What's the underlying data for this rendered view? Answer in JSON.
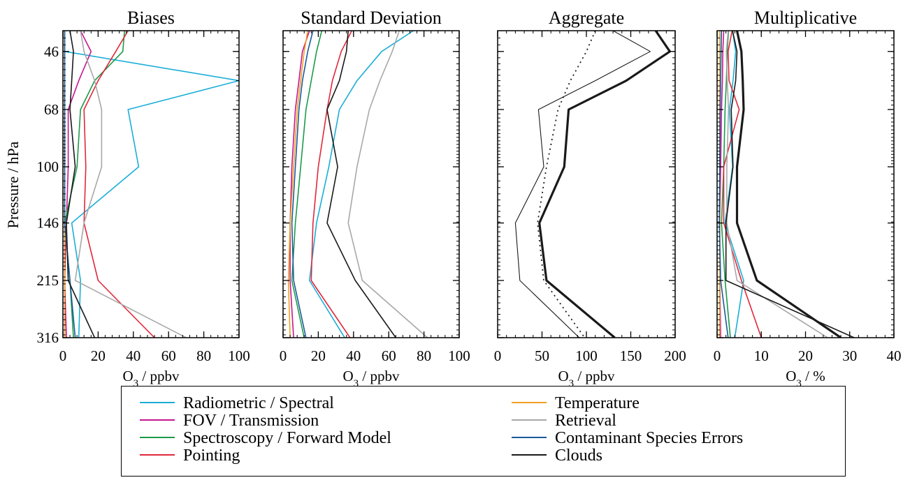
{
  "figure": {
    "ylabel": "Pressure / hPa",
    "series_names": {
      "radiometric": "Radiometric / Spectral",
      "fov": "FOV / Transmission",
      "spectroscopy": "Spectroscopy / Forward Model",
      "pointing": "Pointing",
      "temperature": "Temperature",
      "retrieval": "Retrieval",
      "contaminant": "Contaminant Species Errors",
      "clouds": "Clouds"
    },
    "series_colors": {
      "radiometric": "#1aaed6",
      "fov": "#c4168f",
      "spectroscopy": "#1c9a4a",
      "pointing": "#e0283a",
      "temperature": "#f0a020",
      "retrieval": "#a8a8a8",
      "contaminant": "#1a5a9a",
      "clouds": "#1a1a1a"
    }
  },
  "legend": {
    "columns": [
      [
        "radiometric",
        "fov",
        "spectroscopy",
        "pointing"
      ],
      [
        "temperature",
        "retrieval",
        "contaminant",
        "clouds"
      ]
    ]
  },
  "chart_data": [
    {
      "type": "line",
      "title": "Biases",
      "xlabel_main": "O",
      "xlabel_sub": "3",
      "xlabel_rest": " / ppbv",
      "xlim": [
        0,
        100
      ],
      "xticks": [
        0,
        20,
        40,
        60,
        80,
        100
      ],
      "ylim": [
        316,
        40
      ],
      "ylog": true,
      "yticks": [
        46,
        68,
        100,
        146,
        215,
        316
      ],
      "grid": false,
      "y": [
        40,
        46,
        56,
        68,
        100,
        146,
        215,
        316
      ],
      "series": [
        {
          "key": "radiometric",
          "x": [
            1,
            1,
            100,
            37,
            43,
            5,
            10,
            9
          ]
        },
        {
          "key": "fov",
          "x": [
            10,
            16,
            9,
            3,
            3,
            2,
            1,
            2
          ]
        },
        {
          "key": "spectroscopy",
          "x": [
            35,
            34,
            18,
            10,
            8,
            1,
            4,
            6
          ]
        },
        {
          "key": "pointing",
          "x": [
            37,
            30,
            20,
            12,
            13,
            12,
            20,
            52
          ]
        },
        {
          "key": "temperature",
          "x": [
            1,
            1,
            1,
            1,
            1,
            1,
            1,
            1
          ]
        },
        {
          "key": "retrieval",
          "x": [
            10,
            12,
            18,
            22,
            22,
            12,
            7,
            70
          ]
        },
        {
          "key": "contaminant",
          "x": [
            1,
            1,
            1,
            1,
            1,
            1,
            4,
            7
          ]
        },
        {
          "key": "clouds",
          "x": [
            4,
            6,
            5,
            4,
            7,
            2,
            3,
            18
          ]
        }
      ]
    },
    {
      "type": "line",
      "title": "Standard Deviation",
      "xlabel_main": "O",
      "xlabel_sub": "3",
      "xlabel_rest": " / ppbv",
      "xlim": [
        0,
        100
      ],
      "xticks": [
        0,
        20,
        40,
        60,
        80,
        100
      ],
      "ylim": [
        316,
        40
      ],
      "ylog": true,
      "yticks": [
        46,
        68,
        100,
        146,
        215,
        316
      ],
      "grid": false,
      "y": [
        40,
        46,
        56,
        68,
        100,
        146,
        215,
        316
      ],
      "series": [
        {
          "key": "radiometric",
          "x": [
            74,
            56,
            42,
            32,
            26,
            19,
            15,
            35
          ]
        },
        {
          "key": "fov",
          "x": [
            15,
            11,
            9,
            7,
            5,
            4,
            4,
            6
          ]
        },
        {
          "key": "spectroscopy",
          "x": [
            22,
            19,
            16,
            13,
            10,
            7,
            5,
            12
          ]
        },
        {
          "key": "pointing",
          "x": [
            39,
            33,
            28,
            25,
            20,
            17,
            16,
            38
          ]
        },
        {
          "key": "temperature",
          "x": [
            14,
            12,
            10,
            8,
            6,
            4,
            3,
            4
          ]
        },
        {
          "key": "retrieval",
          "x": [
            66,
            62,
            55,
            49,
            42,
            37,
            45,
            82
          ]
        },
        {
          "key": "contaminant",
          "x": [
            17,
            14,
            11,
            9,
            7,
            5,
            6,
            13
          ]
        },
        {
          "key": "clouds",
          "x": [
            37,
            36,
            32,
            25,
            31,
            25,
            41,
            64
          ]
        }
      ]
    },
    {
      "type": "line",
      "title": "Aggregate",
      "xlabel_main": "O",
      "xlabel_sub": "3",
      "xlabel_rest": " / ppbv",
      "xlim": [
        0,
        200
      ],
      "xticks": [
        0,
        50,
        100,
        150,
        200
      ],
      "ylim": [
        316,
        40
      ],
      "ylog": true,
      "yticks": [
        46,
        68,
        100,
        146,
        215,
        316
      ],
      "grid": false,
      "y": [
        40,
        46,
        56,
        68,
        100,
        146,
        215,
        316
      ],
      "series": [
        {
          "key": "clouds",
          "style": "thick",
          "x": [
            178,
            194,
            145,
            80,
            75,
            47,
            55,
            132
          ]
        },
        {
          "key": "clouds",
          "style": "thin",
          "x": [
            130,
            172,
            110,
            46,
            52,
            20,
            25,
            92
          ]
        },
        {
          "key": "clouds",
          "style": "dotted",
          "x": [
            110,
            100,
            82,
            68,
            55,
            45,
            52,
            98
          ]
        }
      ]
    },
    {
      "type": "line",
      "title": "Multiplicative",
      "xlabel_main": "O",
      "xlabel_sub": "3",
      "xlabel_rest": " / %",
      "xlim": [
        0,
        40
      ],
      "xticks": [
        0,
        10,
        20,
        30,
        40
      ],
      "ylim": [
        316,
        40
      ],
      "ylog": true,
      "yticks": [
        46,
        68,
        100,
        146,
        215,
        316
      ],
      "grid": false,
      "y": [
        40,
        46,
        56,
        68,
        100,
        146,
        215,
        316
      ],
      "series": [
        {
          "key": "radiometric",
          "x": [
            3.5,
            4.2,
            3.6,
            2.8,
            3.5,
            1.8,
            6,
            4
          ]
        },
        {
          "key": "fov",
          "x": [
            1.5,
            1.3,
            1.2,
            1.0,
            0.8,
            0.6,
            0.6,
            0.8
          ]
        },
        {
          "key": "spectroscopy",
          "x": [
            2.6,
            2.3,
            2.1,
            1.8,
            1.5,
            1.0,
            1.8,
            3
          ]
        },
        {
          "key": "pointing",
          "x": [
            3.4,
            2.5,
            2.7,
            5,
            1.5,
            1.5,
            5.5,
            10
          ]
        },
        {
          "key": "temperature",
          "x": [
            0.6,
            0.6,
            0.6,
            0.6,
            0.6,
            0.6,
            0.6,
            0.6
          ]
        },
        {
          "key": "retrieval",
          "x": [
            2.5,
            2.1,
            2.3,
            2.6,
            2.2,
            2.2,
            4.5,
            25
          ]
        },
        {
          "key": "contaminant",
          "x": [
            1.0,
            0.9,
            0.8,
            0.7,
            0.6,
            0.5,
            0.8,
            2.5
          ]
        },
        {
          "key": "clouds",
          "x": [
            3.5,
            4.5,
            4.2,
            3.2,
            3.6,
            2,
            2,
            31
          ]
        },
        {
          "key": "clouds",
          "style": "thick",
          "x": [
            4.5,
            5.5,
            5.8,
            6,
            4.5,
            4.5,
            9,
            28
          ]
        }
      ]
    }
  ]
}
